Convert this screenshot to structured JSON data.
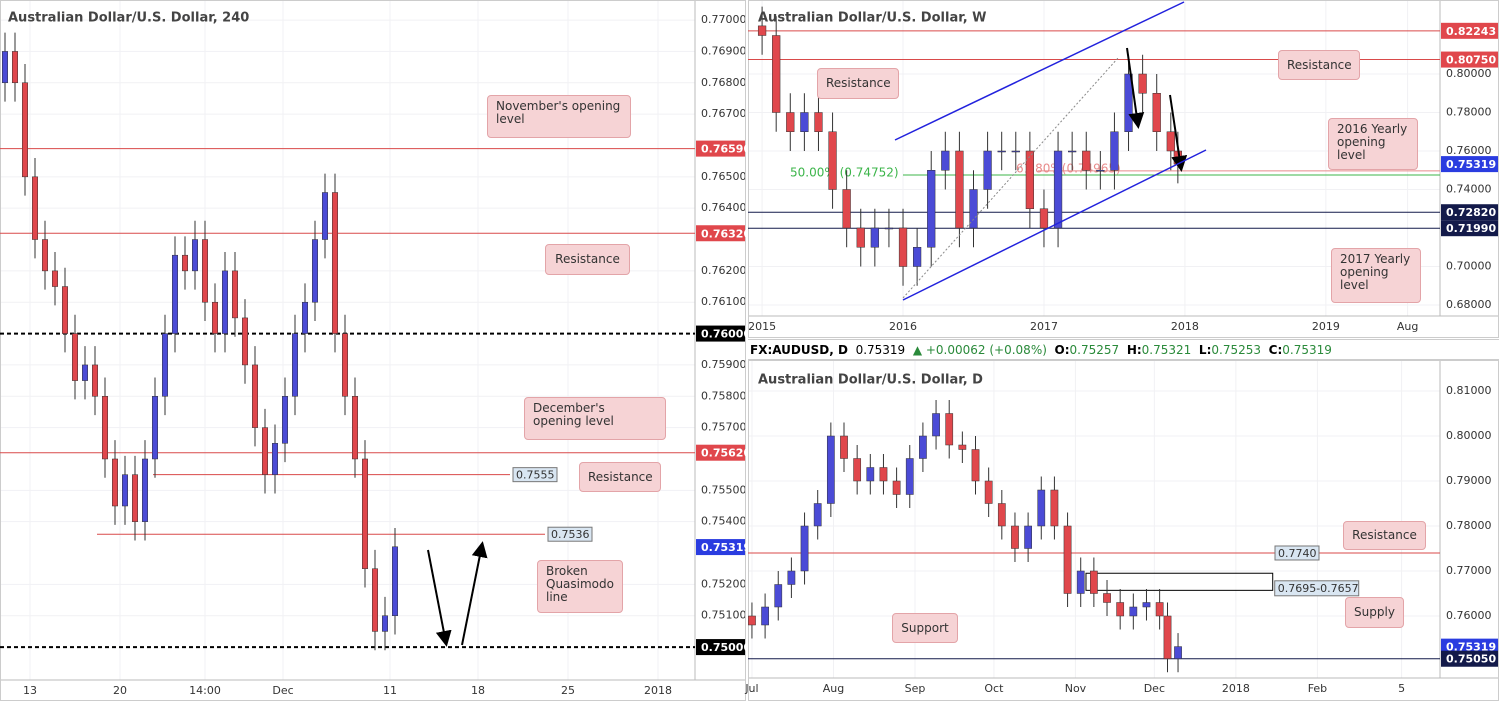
{
  "chart_data": [
    {
      "type": "candlestick",
      "title": "Australian Dollar/U.S. Dollar, 240",
      "up_color": "#4b4bd6",
      "down_color": "#e0474c",
      "x": [
        0,
        1,
        2,
        3,
        4,
        5,
        6,
        7,
        8,
        9,
        10,
        11,
        12,
        13,
        14,
        15,
        16,
        17,
        18,
        19,
        20,
        21,
        22,
        23,
        24,
        25,
        26,
        27,
        28,
        29,
        30,
        31,
        32,
        33,
        34,
        35,
        36,
        37,
        38,
        39
      ],
      "open": [
        0.768,
        0.769,
        0.768,
        0.765,
        0.763,
        0.762,
        0.7615,
        0.76,
        0.7585,
        0.759,
        0.758,
        0.756,
        0.7545,
        0.7555,
        0.754,
        0.756,
        0.758,
        0.76,
        0.7625,
        0.762,
        0.763,
        0.761,
        0.76,
        0.762,
        0.7605,
        0.759,
        0.757,
        0.7555,
        0.7565,
        0.758,
        0.76,
        0.761,
        0.763,
        0.7645,
        0.76,
        0.758,
        0.756,
        0.7525,
        0.7505,
        0.751
      ],
      "high": [
        0.7696,
        0.7696,
        0.7686,
        0.7656,
        0.7636,
        0.7626,
        0.7621,
        0.7606,
        0.7596,
        0.7596,
        0.7586,
        0.7566,
        0.7561,
        0.7561,
        0.7566,
        0.7586,
        0.7606,
        0.7631,
        0.7631,
        0.7636,
        0.7636,
        0.7616,
        0.7626,
        0.7626,
        0.7611,
        0.7596,
        0.7576,
        0.7571,
        0.7586,
        0.7606,
        0.7616,
        0.7636,
        0.7651,
        0.7651,
        0.7606,
        0.7586,
        0.7566,
        0.7531,
        0.7516,
        0.7538
      ],
      "low": [
        0.7674,
        0.7674,
        0.7644,
        0.7624,
        0.7614,
        0.7609,
        0.7594,
        0.7579,
        0.7579,
        0.7574,
        0.7554,
        0.7539,
        0.7539,
        0.7534,
        0.7534,
        0.7554,
        0.7574,
        0.7594,
        0.7614,
        0.7614,
        0.7604,
        0.7594,
        0.7594,
        0.7599,
        0.7584,
        0.7564,
        0.7549,
        0.7549,
        0.7559,
        0.7574,
        0.7594,
        0.7604,
        0.7624,
        0.7594,
        0.7574,
        0.7554,
        0.7519,
        0.7499,
        0.7499,
        0.7504
      ],
      "close": [
        0.769,
        0.768,
        0.765,
        0.763,
        0.762,
        0.7615,
        0.76,
        0.7585,
        0.759,
        0.758,
        0.756,
        0.7545,
        0.7555,
        0.754,
        0.756,
        0.758,
        0.76,
        0.7625,
        0.762,
        0.763,
        0.761,
        0.76,
        0.762,
        0.7605,
        0.759,
        0.757,
        0.7555,
        0.7565,
        0.758,
        0.76,
        0.761,
        0.763,
        0.7645,
        0.76,
        0.758,
        0.756,
        0.7525,
        0.7505,
        0.751,
        0.7532
      ],
      "xlim": [
        -0.5,
        69
      ],
      "xticks": [
        {
          "value": 2.5,
          "label": "13"
        },
        {
          "value": 11.5,
          "label": "20"
        },
        {
          "value": 20,
          "label": "14:00"
        },
        {
          "value": 27.8,
          "label": "Dec"
        },
        {
          "value": 38.5,
          "label": "11"
        },
        {
          "value": 47.3,
          "label": "18"
        },
        {
          "value": 56.3,
          "label": "25"
        },
        {
          "value": 65.3,
          "label": "2018"
        }
      ],
      "ylim": [
        0.74895,
        0.77064
      ],
      "yticks": [
        {
          "value": 0.77,
          "label": "0.77000"
        },
        {
          "value": 0.769,
          "label": "0.76900"
        },
        {
          "value": 0.768,
          "label": "0.76800"
        },
        {
          "value": 0.767,
          "label": "0.76700"
        },
        {
          "value": 0.765,
          "label": "0.76500"
        },
        {
          "value": 0.764,
          "label": "0.76400"
        },
        {
          "value": 0.762,
          "label": "0.76200"
        },
        {
          "value": 0.761,
          "label": "0.76100"
        },
        {
          "value": 0.759,
          "label": "0.75900"
        },
        {
          "value": 0.758,
          "label": "0.75800"
        },
        {
          "value": 0.757,
          "label": "0.75700"
        },
        {
          "value": 0.755,
          "label": "0.75500"
        },
        {
          "value": 0.754,
          "label": "0.75400"
        },
        {
          "value": 0.752,
          "label": "0.75200"
        },
        {
          "value": 0.751,
          "label": "0.75100"
        }
      ],
      "levels": [
        {
          "value": 0.7659,
          "color": "#d94a4a",
          "style": "solid"
        },
        {
          "value": 0.7632,
          "color": "#d94a4a",
          "style": "solid"
        },
        {
          "value": 0.76,
          "color": "#000000",
          "style": "dashed"
        },
        {
          "value": 0.7562,
          "color": "#d94a4a",
          "style": "solid"
        },
        {
          "value": 0.7555,
          "color": "#d94a4a",
          "style": "solid",
          "x_start": 14.8,
          "x_end": 50.5
        },
        {
          "value": 0.7536,
          "color": "#d94a4a",
          "style": "solid",
          "x_start": 9.2,
          "x_end": 54
        },
        {
          "value": 0.75,
          "color": "#000000",
          "style": "dashed"
        }
      ],
      "price_labels": [
        {
          "value": 0.7659,
          "label": "0.76590",
          "color": "#e0474c"
        },
        {
          "value": 0.7632,
          "label": "0.76320",
          "color": "#e0474c"
        },
        {
          "value": 0.76,
          "label": "0.76000",
          "color": "#000000"
        },
        {
          "value": 0.7562,
          "label": "0.75620",
          "color": "#e0474c"
        },
        {
          "value": 0.75319,
          "label": "0.75319",
          "color": "#2a3ce0"
        },
        {
          "value": 0.75,
          "label": "0.75000",
          "color": "#000000"
        }
      ],
      "annotations": [
        "November's opening level",
        "Resistance",
        "December's opening level",
        "Resistance",
        "Broken Quasimodo line"
      ]
    },
    {
      "type": "candlestick",
      "title": "Australian Dollar/U.S. Dollar, W",
      "up_color": "#4b4bd6",
      "down_color": "#e0474c",
      "x": [
        2015.0,
        2015.1,
        2015.2,
        2015.3,
        2015.4,
        2015.5,
        2015.6,
        2015.7,
        2015.8,
        2015.9,
        2016.0,
        2016.1,
        2016.2,
        2016.3,
        2016.4,
        2016.5,
        2016.6,
        2016.7,
        2016.8,
        2016.9,
        2017.0,
        2017.1,
        2017.2,
        2017.3,
        2017.4,
        2017.5,
        2017.6,
        2017.7,
        2017.8,
        2017.9,
        2017.95
      ],
      "open": [
        0.825,
        0.82,
        0.78,
        0.77,
        0.78,
        0.77,
        0.74,
        0.72,
        0.71,
        0.72,
        0.72,
        0.7,
        0.71,
        0.75,
        0.76,
        0.72,
        0.74,
        0.76,
        0.76,
        0.76,
        0.73,
        0.72,
        0.76,
        0.76,
        0.75,
        0.75,
        0.77,
        0.8,
        0.79,
        0.77,
        0.76
      ],
      "high": [
        0.835,
        0.83,
        0.79,
        0.79,
        0.79,
        0.78,
        0.75,
        0.73,
        0.73,
        0.73,
        0.73,
        0.72,
        0.76,
        0.77,
        0.77,
        0.75,
        0.77,
        0.77,
        0.77,
        0.77,
        0.74,
        0.77,
        0.77,
        0.77,
        0.76,
        0.78,
        0.81,
        0.81,
        0.8,
        0.78,
        0.77
      ],
      "low": [
        0.81,
        0.77,
        0.76,
        0.76,
        0.76,
        0.73,
        0.71,
        0.7,
        0.7,
        0.71,
        0.69,
        0.69,
        0.7,
        0.74,
        0.71,
        0.71,
        0.73,
        0.75,
        0.75,
        0.72,
        0.71,
        0.71,
        0.75,
        0.74,
        0.74,
        0.74,
        0.76,
        0.78,
        0.76,
        0.75,
        0.7432
      ],
      "close": [
        0.82,
        0.78,
        0.77,
        0.78,
        0.77,
        0.74,
        0.72,
        0.71,
        0.72,
        0.72,
        0.7,
        0.71,
        0.75,
        0.76,
        0.72,
        0.74,
        0.76,
        0.76,
        0.76,
        0.73,
        0.72,
        0.76,
        0.76,
        0.75,
        0.75,
        0.77,
        0.8,
        0.79,
        0.77,
        0.76,
        0.7532
      ],
      "xlim": [
        2014.9,
        2019.81
      ],
      "xticks": [
        2015,
        2016,
        2017,
        2018,
        2019,
        {
          "value": 2019.58,
          "label": "Aug"
        }
      ],
      "ylim": [
        0.67429,
        0.83844
      ],
      "yticks": [
        {
          "value": 0.8,
          "label": "0.80000"
        },
        {
          "value": 0.78,
          "label": "0.78000"
        },
        {
          "value": 0.76,
          "label": "0.76000"
        },
        {
          "value": 0.74,
          "label": "0.74000"
        },
        {
          "value": 0.7,
          "label": "0.70000"
        },
        {
          "value": 0.68,
          "label": "0.68000"
        }
      ],
      "levels": [
        {
          "value": 0.82243,
          "color": "#d94a4a",
          "style": "solid"
        },
        {
          "value": 0.8075,
          "color": "#d94a4a",
          "style": "solid"
        },
        {
          "value": 0.7282,
          "color": "#131a4a",
          "style": "solid"
        },
        {
          "value": 0.7199,
          "color": "#131a4a",
          "style": "solid"
        }
      ],
      "fib_levels": [
        {
          "value": 0.74752,
          "label": "50.00% (0.74752)",
          "color": "#3cb54a"
        },
        {
          "value": 0.74965,
          "label": "61.80%(0.74965)",
          "color": "#e88a8a"
        }
      ],
      "price_labels": [
        {
          "value": 0.82243,
          "label": "0.82243",
          "color": "#e0474c"
        },
        {
          "value": 0.8075,
          "label": "0.80750",
          "color": "#e0474c"
        },
        {
          "value": 0.75319,
          "label": "0.75319",
          "color": "#2a3ce0"
        },
        {
          "value": 0.7282,
          "label": "0.72820",
          "color": "#131a4a"
        },
        {
          "value": 0.7199,
          "label": "0.71990",
          "color": "#131a4a"
        }
      ],
      "annotations": [
        "Resistance",
        "Resistance",
        "2016 Yearly opening level",
        "2017 Yearly opening level"
      ]
    },
    {
      "type": "candlestick",
      "title": "Australian Dollar/U.S. Dollar, D",
      "up_color": "#4b4bd6",
      "down_color": "#e0474c",
      "x": [
        0,
        5,
        10,
        15,
        20,
        25,
        30,
        35,
        40,
        45,
        50,
        55,
        60,
        65,
        70,
        75,
        80,
        85,
        90,
        95,
        100,
        105,
        110,
        115,
        120,
        125,
        130,
        135,
        140,
        145,
        150,
        155,
        158,
        162
      ],
      "open": [
        0.76,
        0.758,
        0.762,
        0.767,
        0.77,
        0.78,
        0.785,
        0.8,
        0.795,
        0.79,
        0.793,
        0.79,
        0.787,
        0.795,
        0.8,
        0.805,
        0.798,
        0.797,
        0.79,
        0.785,
        0.78,
        0.775,
        0.78,
        0.788,
        0.78,
        0.765,
        0.77,
        0.765,
        0.763,
        0.76,
        0.762,
        0.763,
        0.76,
        0.7505
      ],
      "high": [
        0.763,
        0.765,
        0.77,
        0.773,
        0.783,
        0.788,
        0.803,
        0.803,
        0.798,
        0.796,
        0.796,
        0.793,
        0.798,
        0.803,
        0.808,
        0.808,
        0.801,
        0.8,
        0.793,
        0.788,
        0.783,
        0.783,
        0.791,
        0.791,
        0.783,
        0.773,
        0.773,
        0.768,
        0.766,
        0.765,
        0.766,
        0.766,
        0.763,
        0.7562
      ],
      "low": [
        0.755,
        0.755,
        0.759,
        0.764,
        0.767,
        0.777,
        0.782,
        0.792,
        0.787,
        0.787,
        0.787,
        0.784,
        0.784,
        0.792,
        0.797,
        0.795,
        0.794,
        0.787,
        0.782,
        0.777,
        0.772,
        0.772,
        0.777,
        0.777,
        0.762,
        0.762,
        0.762,
        0.76,
        0.757,
        0.757,
        0.759,
        0.757,
        0.7475,
        0.7475
      ],
      "close": [
        0.758,
        0.762,
        0.767,
        0.77,
        0.78,
        0.785,
        0.8,
        0.795,
        0.79,
        0.793,
        0.79,
        0.787,
        0.795,
        0.8,
        0.805,
        0.798,
        0.797,
        0.79,
        0.785,
        0.78,
        0.775,
        0.78,
        0.788,
        0.78,
        0.765,
        0.77,
        0.765,
        0.763,
        0.76,
        0.762,
        0.763,
        0.76,
        0.7505,
        0.7532
      ],
      "xlim": [
        -1.5,
        261.6
      ],
      "xticks": [
        {
          "value": 0,
          "label": "Jul"
        },
        {
          "value": 31,
          "label": "Aug"
        },
        {
          "value": 62,
          "label": "Sep"
        },
        {
          "value": 92,
          "label": "Oct"
        },
        {
          "value": 123,
          "label": "Nov"
        },
        {
          "value": 153,
          "label": "Dec"
        },
        {
          "value": 184,
          "label": "2018"
        },
        {
          "value": 215,
          "label": "Feb"
        },
        {
          "value": 247,
          "label": "5"
        }
      ],
      "ylim": [
        0.74622,
        0.81689
      ],
      "yticks": [
        {
          "value": 0.81,
          "label": "0.81000"
        },
        {
          "value": 0.8,
          "label": "0.80000"
        },
        {
          "value": 0.79,
          "label": "0.79000"
        },
        {
          "value": 0.78,
          "label": "0.78000"
        },
        {
          "value": 0.77,
          "label": "0.77000"
        },
        {
          "value": 0.76,
          "label": "0.76000"
        }
      ],
      "levels": [
        {
          "value": {
            "value": 0.774,
            "label": "0.7740"
          },
          "color": "#d94a4a",
          "style": "solid"
        },
        {
          "value": 0.7505,
          "color": "#131a4a",
          "style": "solid"
        }
      ],
      "zone": {
        "high": 0.7695,
        "low": 0.7657,
        "label": "0.7695-0.7657",
        "x_start": 127,
        "x_end": 198
      },
      "price_labels": [
        {
          "value": 0.75319,
          "label": "0.75319",
          "color": "#2a3ce0"
        },
        {
          "value": 0.7505,
          "label": "0.75050",
          "color": "#131a4a"
        }
      ],
      "annotations": [
        "Resistance",
        "Supply",
        "Support"
      ]
    }
  ],
  "header": {
    "symbol": "FX:AUDUSD, D",
    "last": "0.75319",
    "change": "▲ +0.00062 (+0.08%)",
    "o_key": "O:",
    "o": "0.75257",
    "h_key": "H:",
    "h": "0.75321",
    "l_key": "L:",
    "l": "0.75253",
    "c_key": "C:",
    "c": "0.75319"
  }
}
